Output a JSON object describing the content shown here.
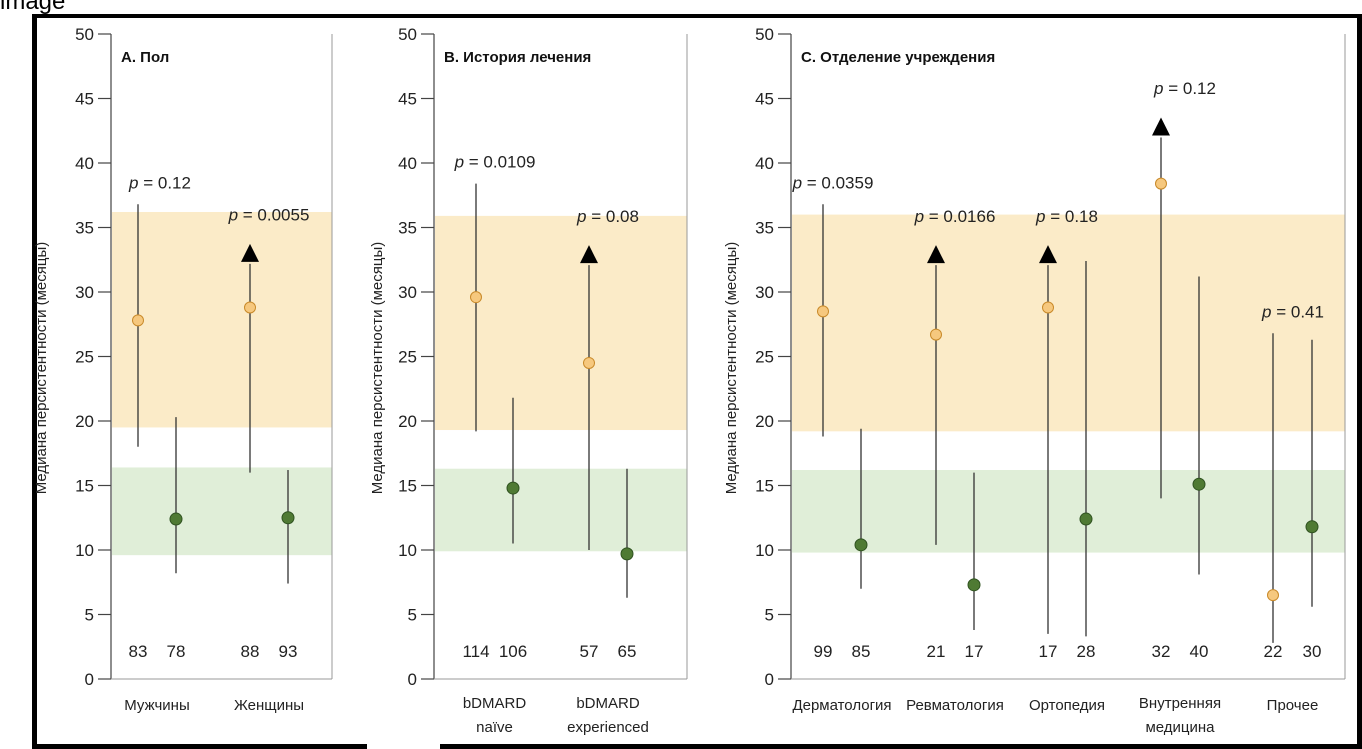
{
  "caption": "image",
  "colors": {
    "orange_band": "#fbebc8",
    "green_band": "#e0eed8",
    "orange_point": "#f6c87e",
    "green_point": "#4f7a33",
    "line": "#333333",
    "arrow": "#000000"
  },
  "chart_data": [
    {
      "type": "scatter",
      "title": "A. Пол",
      "ylabel": "Медиана персистентности (месяцы)",
      "ylim": [
        0,
        50
      ],
      "yticks": [
        0,
        5,
        10,
        15,
        20,
        25,
        30,
        35,
        40,
        45,
        50
      ],
      "bands": {
        "orange": [
          19.5,
          36.2
        ],
        "green": [
          9.6,
          16.4
        ]
      },
      "categories": [
        {
          "label": [
            "Мужчины"
          ],
          "p": "p = 0.12",
          "points": [
            {
              "kind": "orange",
              "value": 27.8,
              "low": 18,
              "high": 36.8,
              "arrow": false,
              "n": "83"
            },
            {
              "kind": "green",
              "value": 12.4,
              "low": 8.2,
              "high": 20.3,
              "arrow": false,
              "n": "78"
            }
          ]
        },
        {
          "label": [
            "Женщины"
          ],
          "p": "p = 0.0055",
          "points": [
            {
              "kind": "orange",
              "value": 28.8,
              "low": 16,
              "high": 32.8,
              "arrow": true,
              "n": "88"
            },
            {
              "kind": "green",
              "value": 12.5,
              "low": 7.4,
              "high": 16.2,
              "arrow": false,
              "n": "93"
            }
          ]
        }
      ]
    },
    {
      "type": "scatter",
      "title": "B. История лечения",
      "ylabel": "Медиана персистентности (месяцы)",
      "ylim": [
        0,
        50
      ],
      "yticks": [
        0,
        5,
        10,
        15,
        20,
        25,
        30,
        35,
        40,
        45,
        50
      ],
      "bands": {
        "orange": [
          19.3,
          35.9
        ],
        "green": [
          9.9,
          16.3
        ]
      },
      "categories": [
        {
          "label": [
            "bDMARD",
            "naïve"
          ],
          "p": "p = 0.0109",
          "points": [
            {
              "kind": "orange",
              "value": 29.6,
              "low": 19.2,
              "high": 38.4,
              "arrow": false,
              "n": "114"
            },
            {
              "kind": "green",
              "value": 14.8,
              "low": 10.5,
              "high": 21.8,
              "arrow": false,
              "n": "106"
            }
          ]
        },
        {
          "label": [
            "bDMARD",
            "experienced"
          ],
          "p": "p = 0.08",
          "points": [
            {
              "kind": "orange",
              "value": 24.5,
              "low": 10,
              "high": 32.7,
              "arrow": true,
              "n": "57"
            },
            {
              "kind": "green",
              "value": 9.7,
              "low": 6.3,
              "high": 16.3,
              "arrow": false,
              "n": "65"
            }
          ]
        }
      ]
    },
    {
      "type": "scatter",
      "title": "C. Отделение учреждения",
      "ylabel": "Медиана персистентности (месяцы)",
      "ylim": [
        0,
        50
      ],
      "yticks": [
        0,
        5,
        10,
        15,
        20,
        25,
        30,
        35,
        40,
        45,
        50
      ],
      "bands": {
        "orange": [
          19.2,
          36.0
        ],
        "green": [
          9.8,
          16.2
        ]
      },
      "categories": [
        {
          "label": [
            "Дерматология"
          ],
          "p": "p = 0.0359",
          "points": [
            {
              "kind": "orange",
              "value": 28.5,
              "low": 18.8,
              "high": 36.8,
              "arrow": false,
              "n": "99"
            },
            {
              "kind": "green",
              "value": 10.4,
              "low": 7,
              "high": 19.4,
              "arrow": false,
              "n": "85"
            }
          ]
        },
        {
          "label": [
            "Ревматология"
          ],
          "p": "p = 0.0166",
          "points": [
            {
              "kind": "orange",
              "value": 26.7,
              "low": 10.4,
              "high": 32.7,
              "arrow": true,
              "n": "21"
            },
            {
              "kind": "green",
              "value": 7.3,
              "low": 3.8,
              "high": 16,
              "arrow": false,
              "n": "17"
            }
          ]
        },
        {
          "label": [
            "Ортопедия"
          ],
          "p": "p = 0.18",
          "points": [
            {
              "kind": "orange",
              "value": 28.8,
              "low": 3.5,
              "high": 32.7,
              "arrow": true,
              "n": "17"
            },
            {
              "kind": "green",
              "value": 12.4,
              "low": 3.3,
              "high": 32.4,
              "arrow": false,
              "n": "28"
            }
          ]
        },
        {
          "label": [
            "Внутренняя",
            "медицина"
          ],
          "p": "p = 0.12",
          "points": [
            {
              "kind": "orange",
              "value": 38.4,
              "low": 14,
              "high": 42.6,
              "arrow": true,
              "n": "32"
            },
            {
              "kind": "green",
              "value": 15.1,
              "low": 8.1,
              "high": 31.2,
              "arrow": false,
              "n": "40"
            }
          ]
        },
        {
          "label": [
            "Прочее"
          ],
          "p": "p = 0.41",
          "points": [
            {
              "kind": "orange",
              "value": 6.5,
              "low": 2.8,
              "high": 26.8,
              "arrow": false,
              "n": "22"
            },
            {
              "kind": "green",
              "value": 11.8,
              "low": 5.6,
              "high": 26.3,
              "arrow": false,
              "n": "30"
            }
          ]
        }
      ]
    }
  ]
}
